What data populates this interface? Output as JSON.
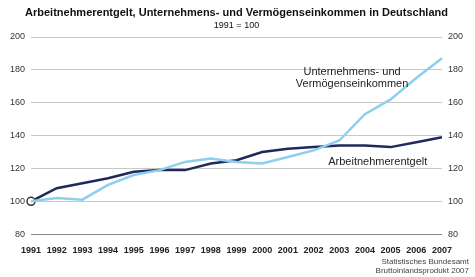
{
  "chart_data": {
    "type": "line",
    "title": "Arbeitnehmerentgelt, Unternehmens- und Vermögenseinkommen in Deutschland",
    "subtitle": "1991 = 100",
    "categories": [
      "1991",
      "1992",
      "1993",
      "1994",
      "1995",
      "1996",
      "1997",
      "1998",
      "1999",
      "2000",
      "2001",
      "2002",
      "2003",
      "2004",
      "2005",
      "2006",
      "2007"
    ],
    "series": [
      {
        "name": "Unternehmens- und Vermögenseinkommen",
        "color": "#8ccfee",
        "values": [
          100,
          102,
          101,
          110,
          116,
          119,
          124,
          126,
          124,
          123,
          127,
          131,
          137,
          153,
          162,
          175,
          187
        ]
      },
      {
        "name": "Arbeitnehmerentgelt",
        "color": "#1f2a5c",
        "values": [
          100,
          108,
          111,
          114,
          118,
          119,
          119,
          123,
          125,
          130,
          132,
          133,
          134,
          134,
          133,
          136,
          139
        ]
      }
    ],
    "ylim": [
      80,
      200
    ],
    "yticks": [
      80,
      100,
      120,
      140,
      160,
      180,
      200
    ],
    "y2lim": [
      80,
      200
    ],
    "y2ticks": [
      80,
      100,
      120,
      140,
      160,
      180,
      200
    ],
    "grid": true,
    "source": [
      "Statistisches Bundesamt",
      "Bruttoinlandsprodukt 2007"
    ]
  }
}
